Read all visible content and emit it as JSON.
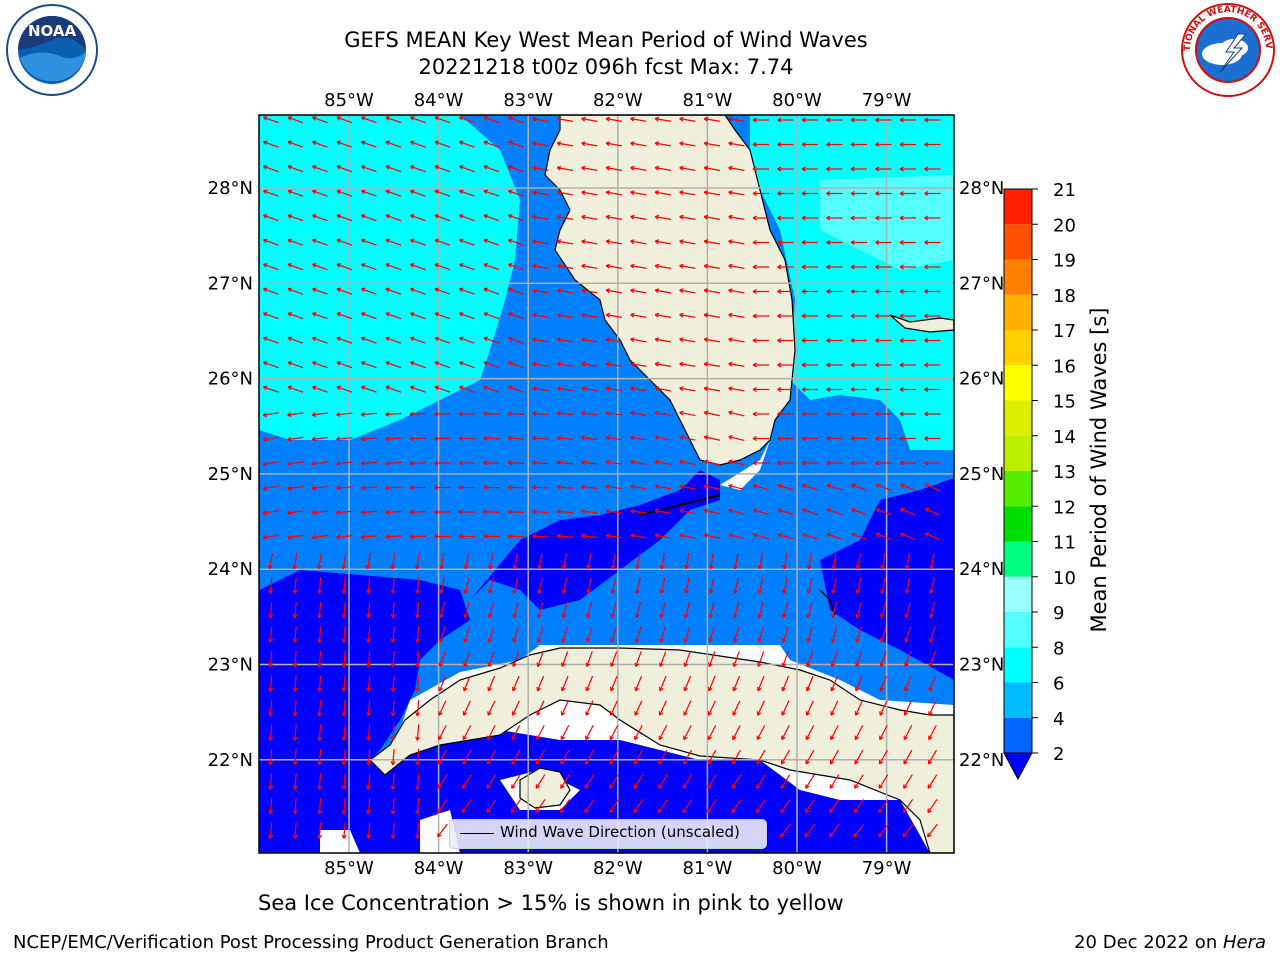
{
  "title_line1": "GEFS MEAN Key West Mean Period of Wind Waves",
  "title_line2": "20221218 t00z 096h fcst   Max: 7.74",
  "lon_labels": [
    "85°W",
    "84°W",
    "83°W",
    "82°W",
    "81°W",
    "80°W",
    "79°W"
  ],
  "lat_labels": [
    "28°N",
    "27°N",
    "26°N",
    "25°N",
    "24°N",
    "23°N",
    "22°N"
  ],
  "legend_label": "Wind Wave Direction (unscaled)",
  "colorbar": {
    "label": "Mean Period of Wind Waves [s]",
    "ticks": [
      "2",
      "4",
      "6",
      "8",
      "9",
      "10",
      "11",
      "12",
      "13",
      "14",
      "15",
      "16",
      "17",
      "18",
      "19",
      "20",
      "21"
    ],
    "colors": [
      "#0000ff",
      "#0066ff",
      "#00bbff",
      "#00ffff",
      "#55ffff",
      "#99ffff",
      "#00ff80",
      "#00e000",
      "#55ee00",
      "#bbee00",
      "#ddee00",
      "#ffff00",
      "#ffd000",
      "#ffb000",
      "#ff8000",
      "#ff5000",
      "#ff2000",
      "#ff0000"
    ]
  },
  "map_colors": {
    "level_2_4": "#0000ff",
    "level_4_6": "#0080ff",
    "level_6_8": "#00ffff",
    "level_8_9": "#55ffff",
    "land": "#efefdb",
    "arrow": "#ff0000",
    "grid": "#b0b0b0"
  },
  "caption": "Sea Ice Concentration > 15% is shown in pink to yellow",
  "footer_left": "NCEP/EMC/Verification Post Processing Product Generation Branch",
  "footer_date": "20 Dec 2022",
  "footer_on": " on ",
  "footer_host": "Hera",
  "logos": {
    "noaa": "NOAA",
    "nws": "NATIONAL WEATHER SERVICE"
  }
}
